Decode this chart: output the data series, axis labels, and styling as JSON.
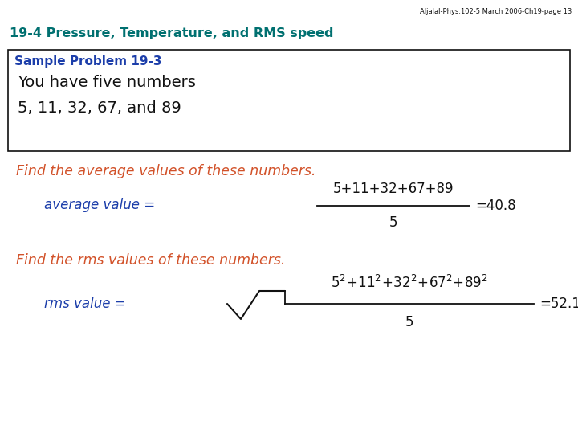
{
  "header_text": "Aljalal-Phys.102-5 March 2006-Ch19-page 13",
  "section_title": "19-4 Pressure, Temperature, and RMS speed",
  "sample_problem_label": "Sample Problem 19-3",
  "box_line1": "You have five numbers",
  "box_line2": "5, 11, 32, 67, and 89",
  "find_avg_text": "Find the average values of these numbers.",
  "avg_label": "average value = ",
  "avg_numerator": "5+11+32+67+89",
  "avg_denominator": "5",
  "avg_result": "=40.8",
  "find_rms_text": "Find the rms values of these numbers.",
  "rms_label": "rms value = ",
  "rms_result": "=52.1",
  "color_orange": "#D2522A",
  "color_blue": "#1C3EAA",
  "color_teal": "#007070",
  "color_black": "#111111",
  "color_white": "#ffffff",
  "bg_color": "#ffffff"
}
